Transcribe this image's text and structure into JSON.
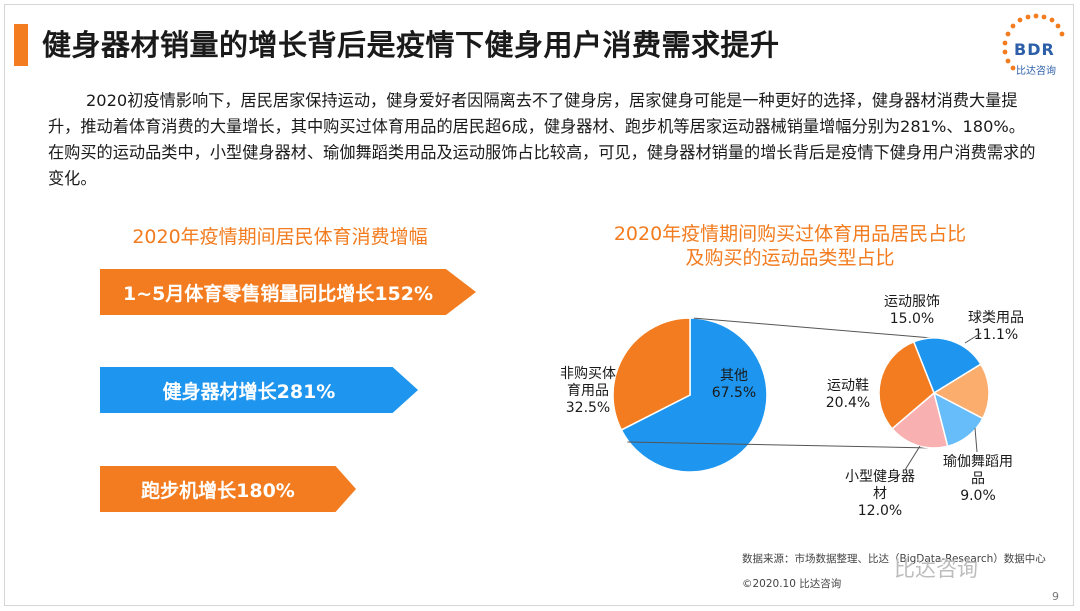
{
  "title": "健身器材销量的增长背后是疫情下健身用户消费需求提升",
  "logo": {
    "text": "BDR",
    "sub": "比达咨询"
  },
  "paragraph": "2020初疫情影响下，居民居家保持运动，健身爱好者因隔离去不了健身房，居家健身可能是一种更好的选择，健身器材消费大量提升，推动着体育消费的大量增长，其中购买过体育用品的居民超6成，健身器材、跑步机等居家运动器械销量增幅分别为281%、180%。在购买的运动品类中，小型健身器材、瑜伽舞蹈类用品及运动服饰占比较高，可见，健身器材销量的增长背后是疫情下健身用户消费需求的变化。",
  "left_section": {
    "title": "2020年疫情期间居民体育消费增幅",
    "arrows": [
      {
        "label": "1~5月体育零售销量同比增长152%",
        "color": "#f27c1f"
      },
      {
        "label": "健身器材增长281%",
        "color": "#1e95ee"
      },
      {
        "label": "跑步机增长180%",
        "color": "#f27c1f"
      }
    ]
  },
  "chart_data": [
    {
      "type": "pie",
      "title": "2020年疫情期间购买过体育用品居民占比及购买的运动品类型占比",
      "title_lines": [
        "2020年疫情期间购买过体育用品居民占比",
        "及购买的运动品类型占比"
      ],
      "slices": [
        {
          "label": "其他",
          "value": 67.5,
          "display": "67.5%",
          "color": "#1e95ee"
        },
        {
          "label": "非购买体育用品",
          "label_lines": [
            "非购买体",
            "育用品"
          ],
          "value": 32.5,
          "display": "32.5%",
          "color": "#f27c1f"
        }
      ]
    },
    {
      "type": "pie",
      "slices": [
        {
          "label": "运动服饰",
          "value": 15.0,
          "display": "15.0%",
          "color": "#1e95ee"
        },
        {
          "label": "球类用品",
          "value": 11.1,
          "display": "11.1%",
          "color": "#fbad6e"
        },
        {
          "label": "瑜伽舞蹈用品",
          "label_lines": [
            "瑜伽舞蹈用",
            "品"
          ],
          "value": 9.0,
          "display": "9.0%",
          "color": "#67bcfa"
        },
        {
          "label": "小型健身器材",
          "label_lines": [
            "小型健身器",
            "材"
          ],
          "value": 12.0,
          "display": "12.0%",
          "color": "#f9b0b0"
        },
        {
          "label": "运动鞋",
          "value": 20.4,
          "display": "20.4%",
          "color": "#f27c1f"
        }
      ]
    }
  ],
  "footer": {
    "source": "数据来源：市场数据整理、比达（BigData-Research）数据中心",
    "copyright": "©2020.10 比达咨询",
    "watermark": "比达咨询",
    "page": "9"
  }
}
